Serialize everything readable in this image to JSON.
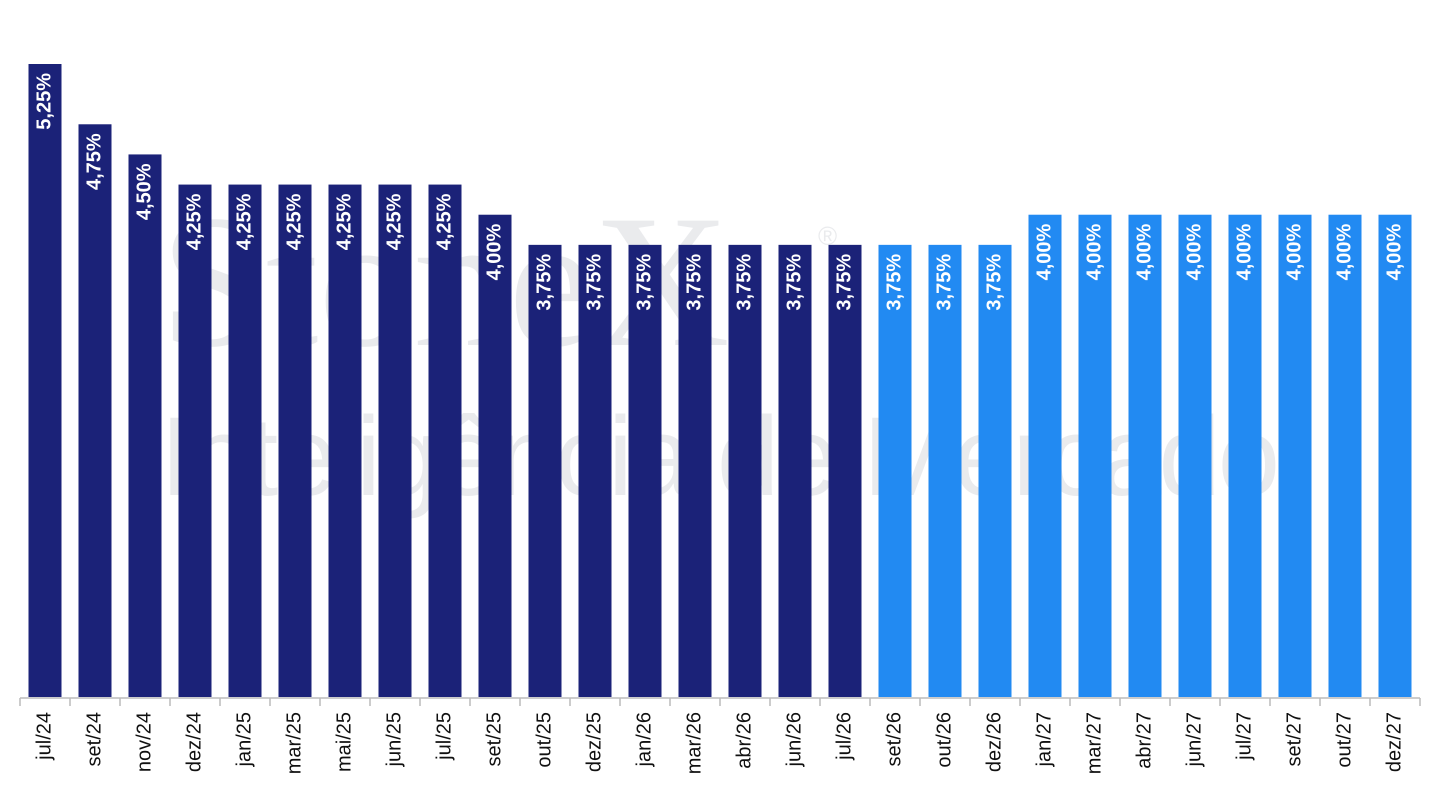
{
  "chart_data": {
    "type": "bar",
    "watermark": "StoneX",
    "watermark_mark": "®",
    "watermark_subtitle": "Inteligência de Mercado",
    "categories": [
      "jul/24",
      "set/24",
      "nov/24",
      "dez/24",
      "jan/25",
      "mar/25",
      "mai/25",
      "jun/25",
      "jul/25",
      "set/25",
      "out/25",
      "dez/25",
      "jan/26",
      "mar/26",
      "abr/26",
      "jun/26",
      "jul/26",
      "set/26",
      "out/26",
      "dez/26",
      "jan/27",
      "mar/27",
      "abr/27",
      "jun/27",
      "jul/27",
      "set/27",
      "out/27",
      "dez/27"
    ],
    "values": [
      5.25,
      4.75,
      4.5,
      4.25,
      4.25,
      4.25,
      4.25,
      4.25,
      4.25,
      4.0,
      3.75,
      3.75,
      3.75,
      3.75,
      3.75,
      3.75,
      3.75,
      3.75,
      3.75,
      3.75,
      4.0,
      4.0,
      4.0,
      4.0,
      4.0,
      4.0,
      4.0,
      4.0
    ],
    "value_labels": [
      "5,25%",
      "4,75%",
      "4,50%",
      "4,25%",
      "4,25%",
      "4,25%",
      "4,25%",
      "4,25%",
      "4,25%",
      "4,00%",
      "3,75%",
      "3,75%",
      "3,75%",
      "3,75%",
      "3,75%",
      "3,75%",
      "3,75%",
      "3,75%",
      "3,75%",
      "3,75%",
      "4,00%",
      "4,00%",
      "4,00%",
      "4,00%",
      "4,00%",
      "4,00%",
      "4,00%",
      "4,00%"
    ],
    "colors": [
      "#1b2278",
      "#1b2278",
      "#1b2278",
      "#1b2278",
      "#1b2278",
      "#1b2278",
      "#1b2278",
      "#1b2278",
      "#1b2278",
      "#1b2278",
      "#1b2278",
      "#1b2278",
      "#1b2278",
      "#1b2278",
      "#1b2278",
      "#1b2278",
      "#1b2278",
      "#228af2",
      "#228af2",
      "#228af2",
      "#228af2",
      "#228af2",
      "#228af2",
      "#228af2",
      "#228af2",
      "#228af2",
      "#228af2",
      "#228af2"
    ]
  }
}
